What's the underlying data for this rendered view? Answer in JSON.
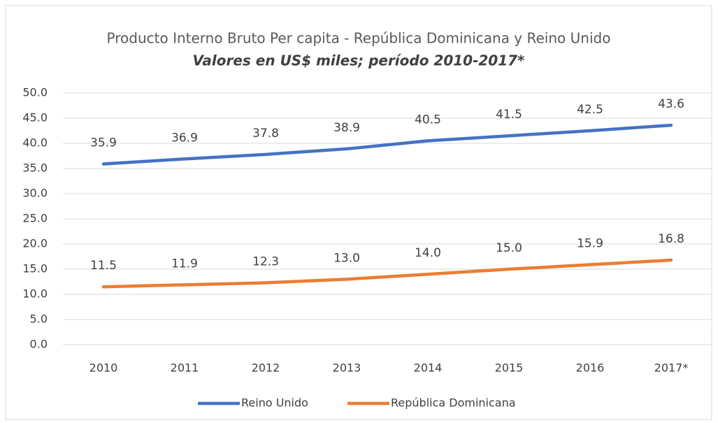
{
  "chart_data": {
    "type": "line",
    "title": "Producto Interno Bruto Per capita - República Dominicana y Reino Unido",
    "subtitle": "Valores en US$ miles; período 2010-2017*",
    "categories": [
      "2010",
      "2011",
      "2012",
      "2013",
      "2014",
      "2015",
      "2016",
      "2017*"
    ],
    "series": [
      {
        "name": "Reino Unido",
        "color": "#4472c4",
        "values": [
          35.9,
          36.9,
          37.8,
          38.9,
          40.5,
          41.5,
          42.5,
          43.6
        ],
        "value_labels": [
          "35.9",
          "36.9",
          "37.8",
          "38.9",
          "40.5",
          "41.5",
          "42.5",
          "43.6"
        ]
      },
      {
        "name": "República Dominicana",
        "color": "#ed7d31",
        "values": [
          11.5,
          11.9,
          12.3,
          13.0,
          14.0,
          15.0,
          15.9,
          16.8
        ],
        "value_labels": [
          "11.5",
          "11.9",
          "12.3",
          "13.0",
          "14.0",
          "15.0",
          "15.9",
          "16.8"
        ]
      }
    ],
    "ylim": [
      0,
      50
    ],
    "yticks": [
      {
        "value": 0,
        "label": "0.0"
      },
      {
        "value": 5,
        "label": "5.0"
      },
      {
        "value": 10,
        "label": "10.0"
      },
      {
        "value": 15,
        "label": "15.0"
      },
      {
        "value": 20,
        "label": "20.0"
      },
      {
        "value": 25,
        "label": "25.0"
      },
      {
        "value": 30,
        "label": "30.0"
      },
      {
        "value": 35,
        "label": "35.0"
      },
      {
        "value": 40,
        "label": "40.0"
      },
      {
        "value": 45,
        "label": "45.0"
      },
      {
        "value": 50,
        "label": "50.0"
      }
    ],
    "grid": true,
    "legend": "bottom"
  }
}
